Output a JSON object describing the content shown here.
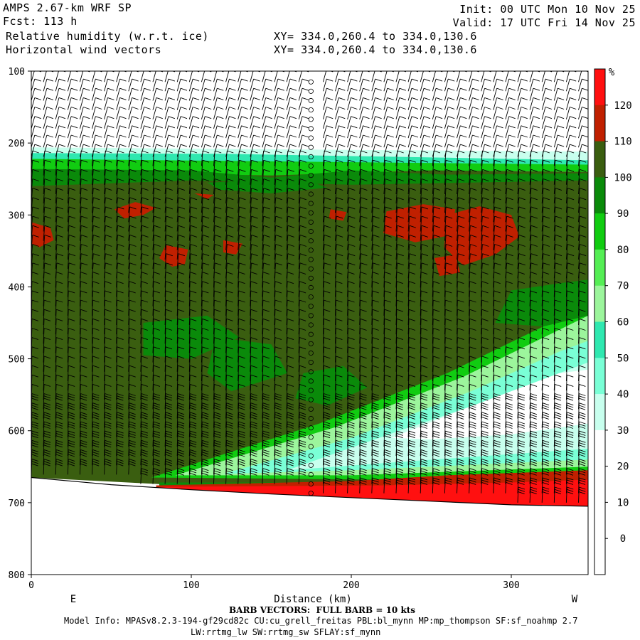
{
  "header": {
    "model": "AMPS 2.67-km WRF SP",
    "fcst": "Fcst: 113 h",
    "field1": "Relative humidity (w.r.t. ice)",
    "field2": "Horizontal wind vectors",
    "xy1": "XY= 334.0,260.4 to 334.0,130.6",
    "xy2": "XY= 334.0,260.4 to 334.0,130.6",
    "init": "Init: 00 UTC Mon 10 Nov 25",
    "valid": "Valid: 17 UTC Fri 14 Nov 25"
  },
  "footer": {
    "barb_note": "BARB VECTORS:  FULL BARB = 10 kts",
    "model_info": "Model Info: MPASv8.2.3-194-gf29cd82c CU:cu_grell_freitas PBL:bl_mynn MP:mp_thompson SF:sf_noahmp 2.7",
    "model_info2": "LW:rrtmg_lw SW:rrtmg_sw SFLAY:sf_mynn"
  },
  "colors": {
    "rh_0": "#ffffff",
    "rh_10": "#ffffff",
    "rh_20": "#ffffff",
    "rh_30": "#c8ffee",
    "rh_40": "#7affd6",
    "rh_50": "#2fe8b0",
    "rh_60": "#9cf59c",
    "rh_70": "#55ee55",
    "rh_80": "#11cc11",
    "rh_90": "#0a8a0a",
    "rh_100": "#3a5e10",
    "rh_110": "#c02000",
    "rh_120": "#ff1010"
  },
  "chart_data": {
    "type": "heatmap",
    "title": "Relative humidity (w.r.t. ice)",
    "overlay": "Horizontal wind vectors",
    "xlabel": "Distance (km)",
    "ylabel": "",
    "x_ticks": [
      0,
      100,
      200,
      300
    ],
    "y_ticks": [
      100,
      200,
      300,
      400,
      500,
      600,
      700,
      800
    ],
    "xlim": [
      0,
      348
    ],
    "ylim": [
      100,
      800
    ],
    "x_end_labels": [
      "E",
      "W"
    ],
    "colorbar": {
      "unit": "%",
      "levels": [
        0,
        10,
        20,
        30,
        40,
        50,
        60,
        70,
        80,
        90,
        100,
        110,
        120
      ],
      "tick_labels": [
        "0",
        "10",
        "20",
        "30",
        "40",
        "50",
        "60",
        "70",
        "80",
        "90",
        "100",
        "110",
        "120"
      ]
    },
    "terrain_surface": [
      [
        0,
        665
      ],
      [
        50,
        675
      ],
      [
        100,
        682
      ],
      [
        150,
        688
      ],
      [
        200,
        693
      ],
      [
        250,
        698
      ],
      [
        300,
        703
      ],
      [
        348,
        705
      ]
    ]
  }
}
